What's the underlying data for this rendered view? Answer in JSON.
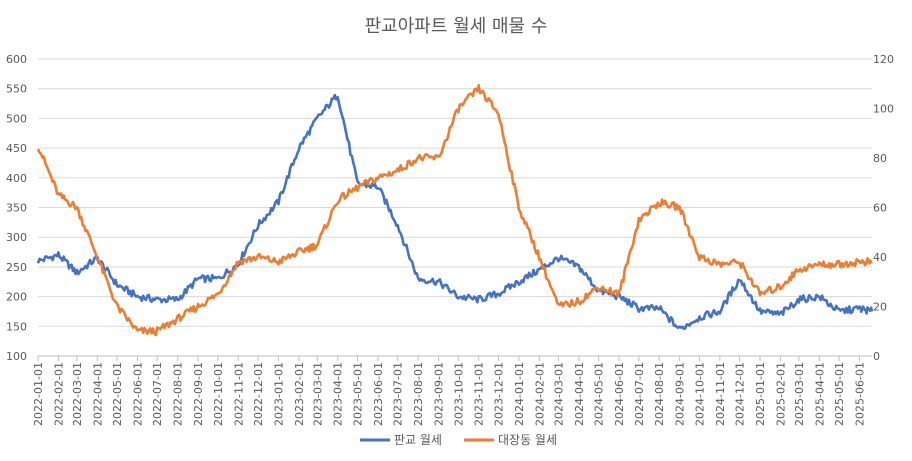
{
  "chart_data": {
    "type": "line",
    "title": "판교아파트 월세 매물 수",
    "x": [
      "2022-01-01",
      "2022-02-01",
      "2022-03-01",
      "2022-04-01",
      "2022-05-01",
      "2022-06-01",
      "2022-07-01",
      "2022-08-01",
      "2022-09-01",
      "2022-10-01",
      "2022-11-01",
      "2022-12-01",
      "2023-01-01",
      "2023-02-01",
      "2023-03-01",
      "2023-04-01",
      "2023-05-01",
      "2023-06-01",
      "2023-07-01",
      "2023-08-01",
      "2023-09-01",
      "2023-10-01",
      "2023-11-01",
      "2023-12-01",
      "2024-01-01",
      "2024-02-01",
      "2024-03-01",
      "2024-04-01",
      "2024-05-01",
      "2024-06-01",
      "2024-07-01",
      "2024-08-01",
      "2024-09-01",
      "2024-10-01",
      "2024-11-01",
      "2024-12-01",
      "2025-01-01",
      "2025-02-01",
      "2025-03-01",
      "2025-04-01",
      "2025-05-01",
      "2025-06-01",
      "2025-06-20"
    ],
    "x_tick_labels": [
      "2022-01-01",
      "2022-02-01",
      "2022-03-01",
      "2022-04-01",
      "2022-05-01",
      "2022-06-01",
      "2022-07-01",
      "2022-08-01",
      "2022-09-01",
      "2022-10-01",
      "2022-11-01",
      "2022-12-01",
      "2023-01-01",
      "2023-02-01",
      "2023-03-01",
      "2023-04-01",
      "2023-05-01",
      "2023-06-01",
      "2023-07-01",
      "2023-08-01",
      "2023-09-01",
      "2023-10-01",
      "2023-11-01",
      "2023-12-01",
      "2024-01-01",
      "2024-02-01",
      "2024-03-01",
      "2024-04-01",
      "2024-05-01",
      "2024-06-01",
      "2024-07-01",
      "2024-08-01",
      "2024-09-01",
      "2024-10-01",
      "2024-11-01",
      "2024-12-01",
      "2025-01-01",
      "2025-02-01",
      "2025-03-01",
      "2025-04-01",
      "2025-05-01",
      "2025-06-01"
    ],
    "y_left": {
      "min": 100,
      "max": 600,
      "step": 50,
      "ticks": [
        "100",
        "150",
        "200",
        "250",
        "300",
        "350",
        "400",
        "450",
        "500",
        "550",
        "600"
      ]
    },
    "y_right": {
      "min": 0,
      "max": 120,
      "step": 20,
      "ticks": [
        "0",
        "20",
        "40",
        "60",
        "80",
        "100",
        "120"
      ]
    },
    "series": [
      {
        "name": "판교 월세",
        "color": "#4472C4",
        "axis": "left",
        "values": [
          260,
          270,
          240,
          265,
          220,
          200,
          195,
          195,
          230,
          230,
          255,
          320,
          360,
          450,
          500,
          540,
          390,
          385,
          320,
          230,
          225,
          200,
          195,
          205,
          225,
          245,
          265,
          250,
          210,
          200,
          180,
          180,
          145,
          165,
          175,
          230,
          175,
          170,
          195,
          200,
          175,
          180,
          175
        ]
      },
      {
        "name": "대장동 월세",
        "color": "#ED7D31",
        "axis": "right",
        "values": [
          85,
          65,
          60,
          40,
          20,
          10,
          10,
          15,
          20,
          25,
          38,
          40,
          38,
          42,
          45,
          63,
          68,
          72,
          75,
          80,
          80,
          100,
          108,
          98,
          60,
          40,
          20,
          22,
          28,
          25,
          55,
          62,
          60,
          40,
          37,
          38,
          25,
          28,
          35,
          37,
          37,
          38,
          38
        ]
      }
    ]
  }
}
